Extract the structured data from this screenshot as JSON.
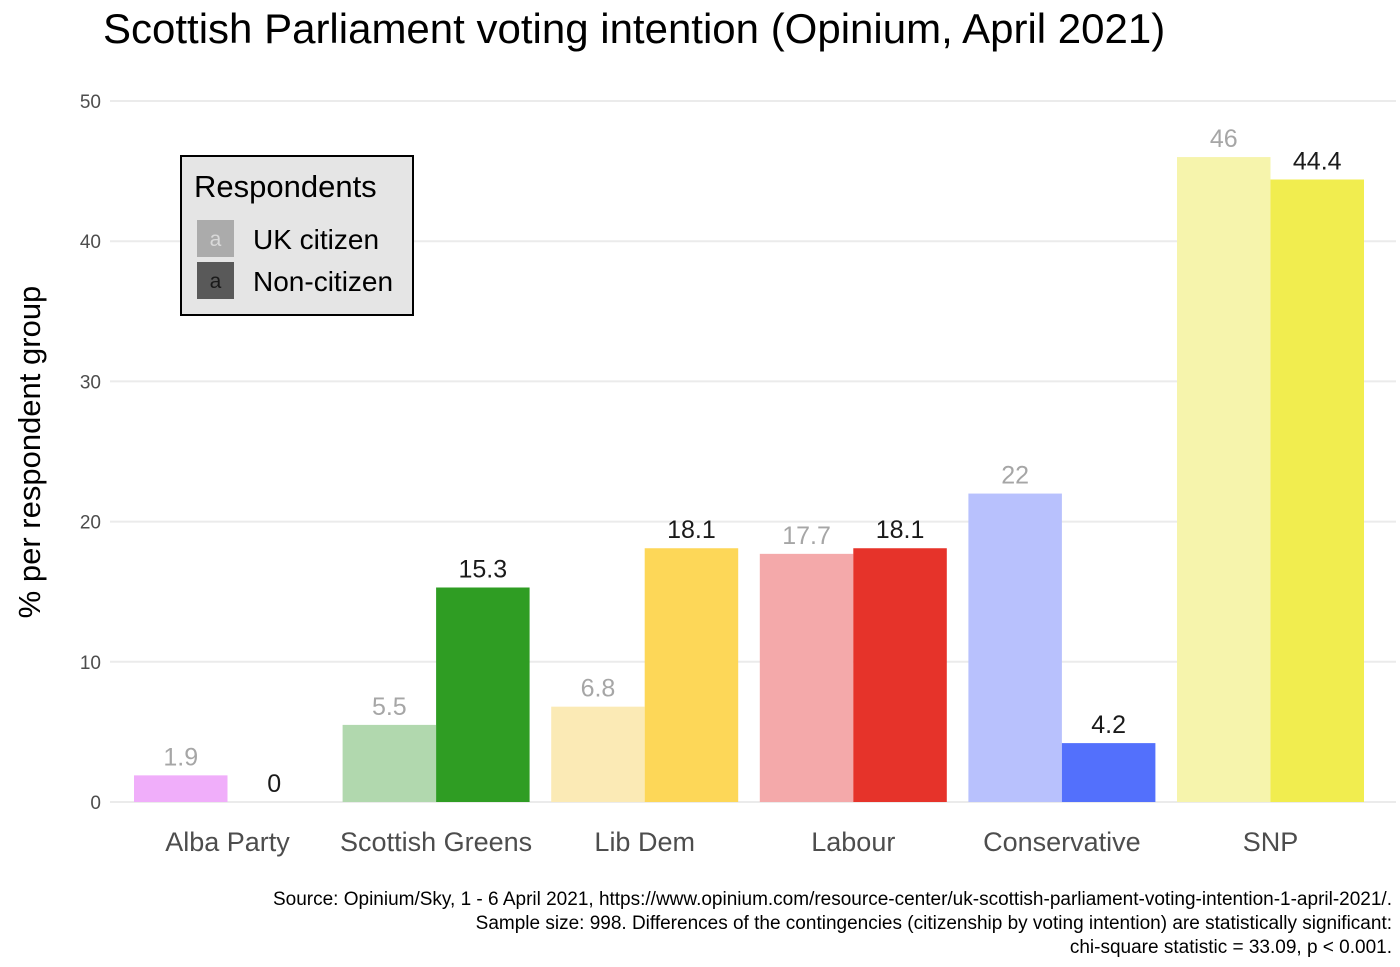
{
  "chart_data": {
    "type": "bar",
    "title": "Scottish Parliament voting intention (Opinium, April 2021)",
    "ylabel": "% per respondent group",
    "xlabel": "",
    "ylim": [
      0,
      50
    ],
    "yticks": [
      0,
      10,
      20,
      30,
      40,
      50
    ],
    "grid": true,
    "categories": [
      "Alba Party",
      "Scottish Greens",
      "Lib Dem",
      "Labour",
      "Conservative",
      "SNP"
    ],
    "series": [
      {
        "name": "UK citizen",
        "values": [
          1.9,
          5.5,
          6.8,
          17.7,
          22,
          46
        ],
        "labels": [
          "1.9",
          "5.5",
          "6.8",
          "17.7",
          "22",
          "46"
        ],
        "colors": [
          "#f0aefa",
          "#b1d8ae",
          "#fbeab5",
          "#f4a9aa",
          "#b8c1fd",
          "#f6f4ac"
        ],
        "label_color": "#a6a6a6"
      },
      {
        "name": "Non-citizen",
        "values": [
          0,
          15.3,
          18.1,
          18.1,
          4.2,
          44.4
        ],
        "labels": [
          "0",
          "15.3",
          "18.1",
          "18.1",
          "4.2",
          "44.4"
        ],
        "colors": [
          "#d35ce6",
          "#2f9d23",
          "#fdd758",
          "#e6332a",
          "#5370fc",
          "#f1ed4f"
        ],
        "label_color": "#1a1a1a"
      }
    ],
    "legend": {
      "title": "Respondents",
      "placement": "top-left",
      "key_letter": "a",
      "items": [
        {
          "label": "UK citizen",
          "key_fill": "#ababab",
          "letter_color": "#d9d9d9"
        },
        {
          "label": "Non-citizen",
          "key_fill": "#595959",
          "letter_color": "#1a1a1a"
        }
      ]
    },
    "caption": [
      "Source: Opinium/Sky, 1 - 6 April 2021, https://www.opinium.com/resource-center/uk-scottish-parliament-voting-intention-1-april-2021/.",
      "Sample size: 998. Differences of the contingencies (citizenship by voting intention) are statistically significant:",
      "chi-square statistic = 33.09, p < 0.001."
    ]
  }
}
